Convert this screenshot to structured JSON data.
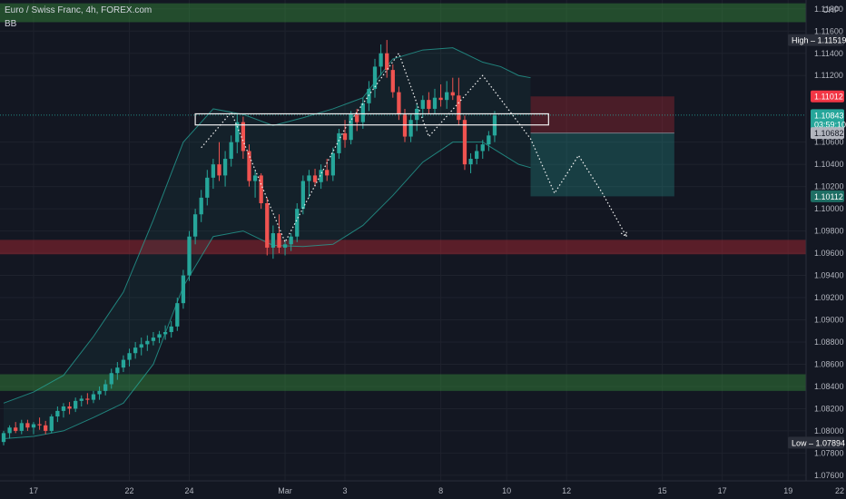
{
  "chart_data": {
    "type": "candlestick",
    "title": "Euro / Swiss Franc, 4h, FOREX.com",
    "indicator": "BB",
    "currency": "CHF",
    "ylim": [
      1.0755,
      1.1188
    ],
    "xlim": [
      0,
      134
    ],
    "y_ticks": [
      "1.11800",
      "1.11600",
      "1.11400",
      "1.11200",
      "1.10600",
      "1.10400",
      "1.10200",
      "1.10000",
      "1.09800",
      "1.09600",
      "1.09400",
      "1.09200",
      "1.09000",
      "1.08800",
      "1.08600",
      "1.08400",
      "1.08200",
      "1.08000",
      "1.07800",
      "1.07600"
    ],
    "x_ticks": [
      {
        "label": "17",
        "x": 5
      },
      {
        "label": "22",
        "x": 21
      },
      {
        "label": "24",
        "x": 31
      },
      {
        "label": "Mar",
        "x": 47
      },
      {
        "label": "3",
        "x": 57
      },
      {
        "label": "8",
        "x": 73
      },
      {
        "label": "10",
        "x": 84
      },
      {
        "label": "12",
        "x": 94
      },
      {
        "label": "15",
        "x": 110
      },
      {
        "label": "17",
        "x": 120
      },
      {
        "label": "19",
        "x": 131
      },
      {
        "label": "22",
        "x": 146
      }
    ],
    "price_labels": [
      {
        "text": "High – 1.11519",
        "value": 1.11519,
        "kind": "high"
      },
      {
        "text": "1.11012",
        "value": 1.11012,
        "kind": "stop"
      },
      {
        "text": "1.10843",
        "value": 1.10843,
        "kind": "last"
      },
      {
        "text": "03:59:10",
        "value": 1.1076,
        "kind": "timer"
      },
      {
        "text": "1.10682",
        "value": 1.10682,
        "kind": "entry"
      },
      {
        "text": "1.10112",
        "value": 1.10112,
        "kind": "target"
      },
      {
        "text": "Low – 1.07894",
        "value": 1.07894,
        "kind": "low"
      }
    ],
    "zones": [
      {
        "kind": "supply",
        "from": 1.1185,
        "to": 1.1168
      },
      {
        "kind": "resistance",
        "from": 1.0972,
        "to": 1.0959
      },
      {
        "kind": "demand",
        "from": 1.0851,
        "to": 1.0836
      }
    ],
    "neckline_box": {
      "x0": 32,
      "x1": 91,
      "from": 1.10855,
      "to": 1.10755
    },
    "position": {
      "x0": 88,
      "x1": 112,
      "stop": 1.11012,
      "entry": 1.10682,
      "target": 1.10112
    },
    "pattern_path": [
      [
        33,
        1.1055
      ],
      [
        38,
        1.1087
      ],
      [
        47,
        1.097
      ],
      [
        57,
        1.1072
      ],
      [
        66,
        1.114
      ],
      [
        71,
        1.1065
      ],
      [
        80,
        1.112
      ],
      [
        88,
        1.1063
      ],
      [
        92,
        1.1014
      ],
      [
        96,
        1.1048
      ],
      [
        100,
        1.1014
      ],
      [
        104,
        1.0975
      ]
    ],
    "bb_upper": [
      [
        0,
        1.0825
      ],
      [
        5,
        1.0835
      ],
      [
        10,
        1.085
      ],
      [
        15,
        1.0885
      ],
      [
        20,
        1.0925
      ],
      [
        25,
        1.099
      ],
      [
        30,
        1.106
      ],
      [
        35,
        1.109
      ],
      [
        40,
        1.1085
      ],
      [
        45,
        1.1075
      ],
      [
        50,
        1.1082
      ],
      [
        55,
        1.109
      ],
      [
        60,
        1.11
      ],
      [
        65,
        1.1135
      ],
      [
        70,
        1.1143
      ],
      [
        75,
        1.1145
      ],
      [
        80,
        1.1132
      ],
      [
        83,
        1.1128
      ],
      [
        86,
        1.112
      ],
      [
        88,
        1.1118
      ]
    ],
    "bb_lower": [
      [
        0,
        1.0793
      ],
      [
        5,
        1.0795
      ],
      [
        10,
        1.08
      ],
      [
        15,
        1.0812
      ],
      [
        20,
        1.0825
      ],
      [
        25,
        1.086
      ],
      [
        30,
        1.093
      ],
      [
        35,
        1.0975
      ],
      [
        40,
        1.098
      ],
      [
        45,
        1.0967
      ],
      [
        50,
        1.0966
      ],
      [
        55,
        1.0968
      ],
      [
        60,
        1.0985
      ],
      [
        65,
        1.1012
      ],
      [
        70,
        1.1042
      ],
      [
        75,
        1.106
      ],
      [
        80,
        1.106
      ],
      [
        83,
        1.105
      ],
      [
        86,
        1.104
      ],
      [
        88,
        1.1037
      ]
    ],
    "ohlc": [
      {
        "o": 1.079,
        "h": 1.08,
        "l": 1.0787,
        "c": 1.0798
      },
      {
        "o": 1.0798,
        "h": 1.0805,
        "l": 1.0793,
        "c": 1.0803
      },
      {
        "o": 1.0803,
        "h": 1.0808,
        "l": 1.0798,
        "c": 1.08
      },
      {
        "o": 1.08,
        "h": 1.081,
        "l": 1.0797,
        "c": 1.0807
      },
      {
        "o": 1.0807,
        "h": 1.081,
        "l": 1.08,
        "c": 1.0803
      },
      {
        "o": 1.0803,
        "h": 1.0808,
        "l": 1.0797,
        "c": 1.0806
      },
      {
        "o": 1.0806,
        "h": 1.0812,
        "l": 1.0801,
        "c": 1.0805
      },
      {
        "o": 1.0805,
        "h": 1.0809,
        "l": 1.0797,
        "c": 1.08
      },
      {
        "o": 1.08,
        "h": 1.0815,
        "l": 1.0798,
        "c": 1.0813
      },
      {
        "o": 1.0813,
        "h": 1.0822,
        "l": 1.0808,
        "c": 1.0818
      },
      {
        "o": 1.0818,
        "h": 1.0825,
        "l": 1.0812,
        "c": 1.0822
      },
      {
        "o": 1.0822,
        "h": 1.0826,
        "l": 1.0815,
        "c": 1.082
      },
      {
        "o": 1.082,
        "h": 1.083,
        "l": 1.0817,
        "c": 1.0827
      },
      {
        "o": 1.0827,
        "h": 1.0832,
        "l": 1.0822,
        "c": 1.0829
      },
      {
        "o": 1.0829,
        "h": 1.0834,
        "l": 1.0824,
        "c": 1.0828
      },
      {
        "o": 1.0828,
        "h": 1.0836,
        "l": 1.0825,
        "c": 1.0833
      },
      {
        "o": 1.0833,
        "h": 1.084,
        "l": 1.0828,
        "c": 1.0836
      },
      {
        "o": 1.0836,
        "h": 1.0846,
        "l": 1.0832,
        "c": 1.0842
      },
      {
        "o": 1.0842,
        "h": 1.0856,
        "l": 1.0838,
        "c": 1.0852
      },
      {
        "o": 1.0852,
        "h": 1.0862,
        "l": 1.0846,
        "c": 1.0857
      },
      {
        "o": 1.0857,
        "h": 1.0868,
        "l": 1.0853,
        "c": 1.0864
      },
      {
        "o": 1.0864,
        "h": 1.0874,
        "l": 1.0858,
        "c": 1.087
      },
      {
        "o": 1.087,
        "h": 1.088,
        "l": 1.0865,
        "c": 1.0875
      },
      {
        "o": 1.0875,
        "h": 1.0884,
        "l": 1.0868,
        "c": 1.0878
      },
      {
        "o": 1.0878,
        "h": 1.0886,
        "l": 1.0872,
        "c": 1.0881
      },
      {
        "o": 1.0881,
        "h": 1.0889,
        "l": 1.0877,
        "c": 1.0884
      },
      {
        "o": 1.0884,
        "h": 1.089,
        "l": 1.0879,
        "c": 1.0887
      },
      {
        "o": 1.0887,
        "h": 1.0895,
        "l": 1.0882,
        "c": 1.0889
      },
      {
        "o": 1.0889,
        "h": 1.0899,
        "l": 1.0884,
        "c": 1.0894
      },
      {
        "o": 1.0894,
        "h": 1.092,
        "l": 1.089,
        "c": 1.0915
      },
      {
        "o": 1.0915,
        "h": 1.0945,
        "l": 1.091,
        "c": 1.094
      },
      {
        "o": 1.094,
        "h": 1.098,
        "l": 1.0935,
        "c": 1.0975
      },
      {
        "o": 1.0975,
        "h": 1.1,
        "l": 1.0968,
        "c": 1.0995
      },
      {
        "o": 1.0995,
        "h": 1.1017,
        "l": 1.0988,
        "c": 1.101
      },
      {
        "o": 1.101,
        "h": 1.1035,
        "l": 1.1003,
        "c": 1.1028
      },
      {
        "o": 1.1028,
        "h": 1.1045,
        "l": 1.1018,
        "c": 1.104
      },
      {
        "o": 1.104,
        "h": 1.106,
        "l": 1.1025,
        "c": 1.103
      },
      {
        "o": 1.103,
        "h": 1.1052,
        "l": 1.102,
        "c": 1.1045
      },
      {
        "o": 1.1045,
        "h": 1.1066,
        "l": 1.1038,
        "c": 1.106
      },
      {
        "o": 1.106,
        "h": 1.1085,
        "l": 1.105,
        "c": 1.1078
      },
      {
        "o": 1.1078,
        "h": 1.1083,
        "l": 1.1045,
        "c": 1.1052
      },
      {
        "o": 1.1052,
        "h": 1.1058,
        "l": 1.102,
        "c": 1.1025
      },
      {
        "o": 1.1025,
        "h": 1.1035,
        "l": 1.101,
        "c": 1.103
      },
      {
        "o": 1.103,
        "h": 1.1032,
        "l": 1.1,
        "c": 1.1005
      },
      {
        "o": 1.1005,
        "h": 1.101,
        "l": 1.0958,
        "c": 1.0965
      },
      {
        "o": 1.0965,
        "h": 1.0985,
        "l": 1.0955,
        "c": 1.0978
      },
      {
        "o": 1.0978,
        "h": 1.0995,
        "l": 1.096,
        "c": 1.0965
      },
      {
        "o": 1.0965,
        "h": 1.0972,
        "l": 1.0958,
        "c": 1.0968
      },
      {
        "o": 1.0968,
        "h": 1.0978,
        "l": 1.0962,
        "c": 1.0975
      },
      {
        "o": 1.0975,
        "h": 1.1005,
        "l": 1.097,
        "c": 1.1
      },
      {
        "o": 1.1,
        "h": 1.103,
        "l": 1.0995,
        "c": 1.1025
      },
      {
        "o": 1.1025,
        "h": 1.1035,
        "l": 1.101,
        "c": 1.103
      },
      {
        "o": 1.103,
        "h": 1.1036,
        "l": 1.102,
        "c": 1.1024
      },
      {
        "o": 1.1024,
        "h": 1.104,
        "l": 1.1018,
        "c": 1.1035
      },
      {
        "o": 1.1035,
        "h": 1.1045,
        "l": 1.1025,
        "c": 1.103
      },
      {
        "o": 1.103,
        "h": 1.1055,
        "l": 1.1025,
        "c": 1.105
      },
      {
        "o": 1.105,
        "h": 1.1072,
        "l": 1.1045,
        "c": 1.1068
      },
      {
        "o": 1.1068,
        "h": 1.108,
        "l": 1.1055,
        "c": 1.1062
      },
      {
        "o": 1.1062,
        "h": 1.1088,
        "l": 1.1058,
        "c": 1.1085
      },
      {
        "o": 1.1085,
        "h": 1.109,
        "l": 1.107,
        "c": 1.1078
      },
      {
        "o": 1.1078,
        "h": 1.11,
        "l": 1.1072,
        "c": 1.1095
      },
      {
        "o": 1.1095,
        "h": 1.1115,
        "l": 1.1088,
        "c": 1.1108
      },
      {
        "o": 1.1108,
        "h": 1.1135,
        "l": 1.11,
        "c": 1.1128
      },
      {
        "o": 1.1128,
        "h": 1.1148,
        "l": 1.112,
        "c": 1.114
      },
      {
        "o": 1.114,
        "h": 1.1152,
        "l": 1.1118,
        "c": 1.1125
      },
      {
        "o": 1.1125,
        "h": 1.113,
        "l": 1.11,
        "c": 1.1105
      },
      {
        "o": 1.1105,
        "h": 1.111,
        "l": 1.108,
        "c": 1.1085
      },
      {
        "o": 1.1085,
        "h": 1.109,
        "l": 1.106,
        "c": 1.1065
      },
      {
        "o": 1.1065,
        "h": 1.1085,
        "l": 1.106,
        "c": 1.108
      },
      {
        "o": 1.108,
        "h": 1.1095,
        "l": 1.107,
        "c": 1.109
      },
      {
        "o": 1.109,
        "h": 1.1102,
        "l": 1.1082,
        "c": 1.1098
      },
      {
        "o": 1.1098,
        "h": 1.1105,
        "l": 1.1085,
        "c": 1.109
      },
      {
        "o": 1.109,
        "h": 1.1108,
        "l": 1.1085,
        "c": 1.11
      },
      {
        "o": 1.11,
        "h": 1.1112,
        "l": 1.1092,
        "c": 1.1098
      },
      {
        "o": 1.1098,
        "h": 1.1115,
        "l": 1.109,
        "c": 1.1105
      },
      {
        "o": 1.1105,
        "h": 1.1118,
        "l": 1.1098,
        "c": 1.1102
      },
      {
        "o": 1.1102,
        "h": 1.1118,
        "l": 1.1075,
        "c": 1.108
      },
      {
        "o": 1.108,
        "h": 1.1084,
        "l": 1.1035,
        "c": 1.104
      },
      {
        "o": 1.104,
        "h": 1.105,
        "l": 1.1032,
        "c": 1.1045
      },
      {
        "o": 1.1045,
        "h": 1.1058,
        "l": 1.104,
        "c": 1.1052
      },
      {
        "o": 1.1052,
        "h": 1.1062,
        "l": 1.1045,
        "c": 1.1058
      },
      {
        "o": 1.1058,
        "h": 1.107,
        "l": 1.1052,
        "c": 1.1066
      },
      {
        "o": 1.1066,
        "h": 1.1088,
        "l": 1.106,
        "c": 1.1084
      }
    ]
  }
}
